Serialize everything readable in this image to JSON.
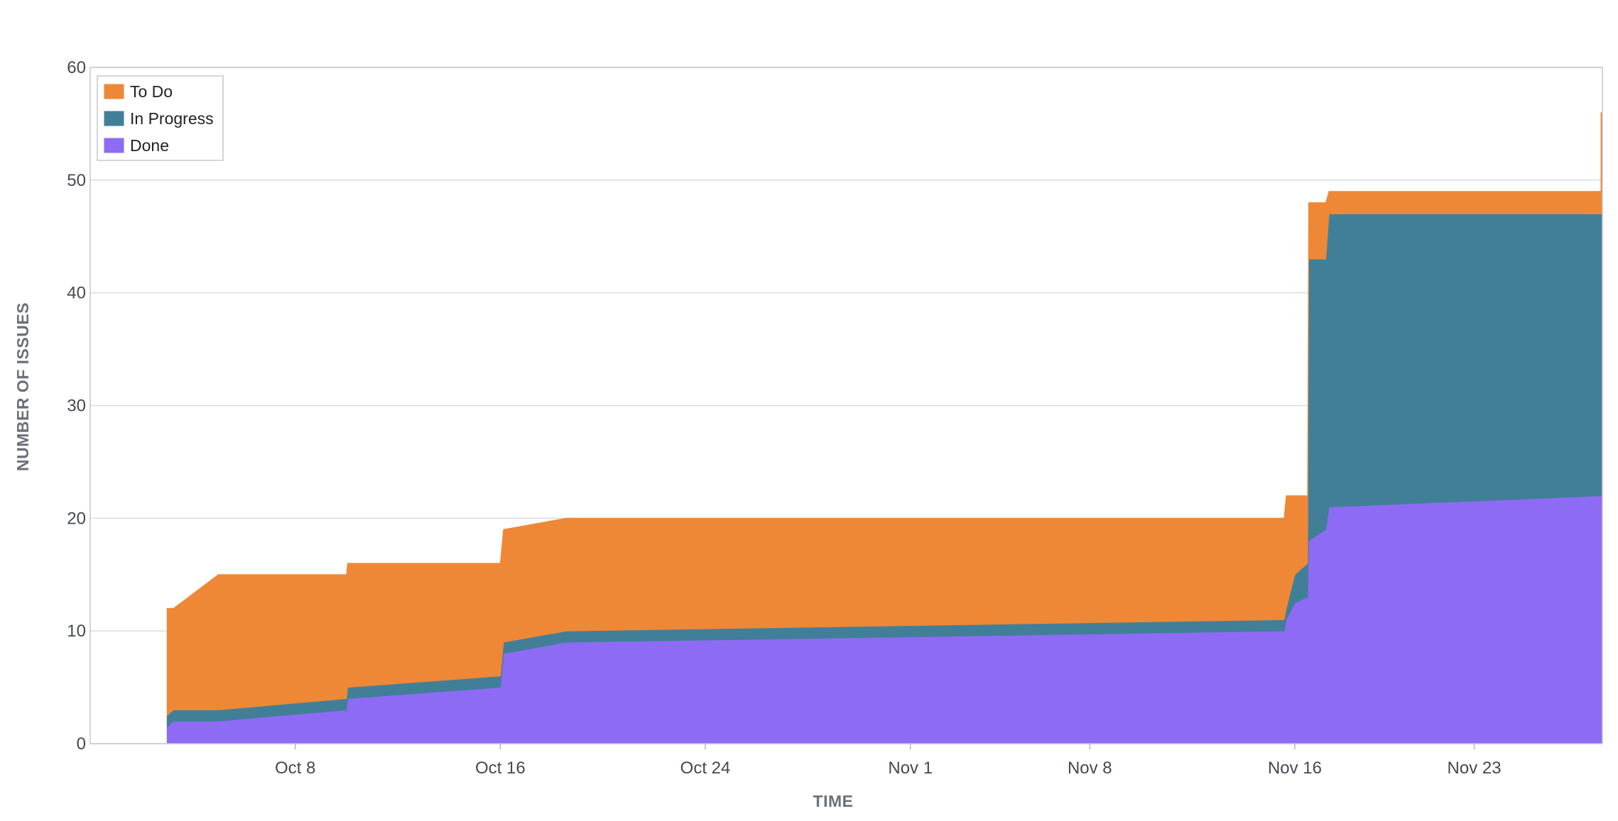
{
  "chart_data": {
    "type": "area",
    "stacked": true,
    "xlabel": "TIME",
    "ylabel": "NUMBER OF ISSUES",
    "ylim": [
      0,
      60
    ],
    "y_ticks": [
      0,
      10,
      20,
      30,
      40,
      50,
      60
    ],
    "xlim": [
      "2023-09-30",
      "2023-11-28"
    ],
    "x_ticks": [
      {
        "date": "2023-10-08",
        "label": "Oct 8"
      },
      {
        "date": "2023-10-16",
        "label": "Oct 16"
      },
      {
        "date": "2023-10-24",
        "label": "Oct 24"
      },
      {
        "date": "2023-11-01",
        "label": "Nov 1"
      },
      {
        "date": "2023-11-08",
        "label": "Nov 8"
      },
      {
        "date": "2023-11-16",
        "label": "Nov 16"
      },
      {
        "date": "2023-11-23",
        "label": "Nov 23"
      }
    ],
    "grid": true,
    "legend_position": "top-left",
    "series": [
      {
        "name": "Done",
        "color": "#8e6bf5",
        "points": [
          [
            "2023-10-03T00:00",
            1.5
          ],
          [
            "2023-10-03T06:00",
            2
          ],
          [
            "2023-10-05T00:00",
            2
          ],
          [
            "2023-10-10T00:00",
            3
          ],
          [
            "2023-10-10T01:00",
            4
          ],
          [
            "2023-10-16T00:00",
            5
          ],
          [
            "2023-10-16T03:00",
            8
          ],
          [
            "2023-10-18T14:00",
            9
          ],
          [
            "2023-11-15T14:00",
            10
          ],
          [
            "2023-11-15T16:00",
            11
          ],
          [
            "2023-11-16T00:00",
            12.5
          ],
          [
            "2023-11-16T12:00",
            13
          ],
          [
            "2023-11-16T13:00",
            18
          ],
          [
            "2023-11-17T05:00",
            19
          ],
          [
            "2023-11-17T08:00",
            21
          ],
          [
            "2023-11-28T00:00",
            22
          ]
        ]
      },
      {
        "name": "In Progress",
        "color": "#417f99",
        "points": [
          [
            "2023-10-03T00:00",
            1
          ],
          [
            "2023-10-03T06:00",
            1
          ],
          [
            "2023-10-10T00:00",
            1
          ],
          [
            "2023-10-16T00:00",
            1
          ],
          [
            "2023-10-16T03:00",
            1
          ],
          [
            "2023-10-18T14:00",
            1
          ],
          [
            "2023-11-15T14:00",
            1
          ],
          [
            "2023-11-15T16:00",
            1
          ],
          [
            "2023-11-16T00:00",
            2.5
          ],
          [
            "2023-11-16T12:00",
            3
          ],
          [
            "2023-11-16T13:00",
            25
          ],
          [
            "2023-11-17T05:00",
            24
          ],
          [
            "2023-11-17T08:00",
            26
          ],
          [
            "2023-11-28T00:00",
            25
          ]
        ]
      },
      {
        "name": "To Do",
        "color": "#ee8836",
        "points": [
          [
            "2023-10-03T00:00",
            9.5
          ],
          [
            "2023-10-03T06:00",
            9
          ],
          [
            "2023-10-05T00:00",
            12
          ],
          [
            "2023-10-10T00:00",
            11
          ],
          [
            "2023-10-10T01:00",
            11
          ],
          [
            "2023-10-16T00:00",
            10
          ],
          [
            "2023-10-16T03:00",
            10
          ],
          [
            "2023-10-18T14:00",
            10
          ],
          [
            "2023-11-15T14:00",
            9
          ],
          [
            "2023-11-15T16:00",
            10
          ],
          [
            "2023-11-16T00:00",
            7
          ],
          [
            "2023-11-16T12:00",
            6
          ],
          [
            "2023-11-16T13:00",
            5
          ],
          [
            "2023-11-17T05:00",
            5
          ],
          [
            "2023-11-17T08:00",
            2
          ],
          [
            "2023-11-28T00:00",
            2
          ]
        ]
      }
    ],
    "legend": [
      {
        "label": "To Do",
        "color": "#ee8836"
      },
      {
        "label": "In Progress",
        "color": "#417f99"
      },
      {
        "label": "Done",
        "color": "#8e6bf5"
      }
    ]
  }
}
